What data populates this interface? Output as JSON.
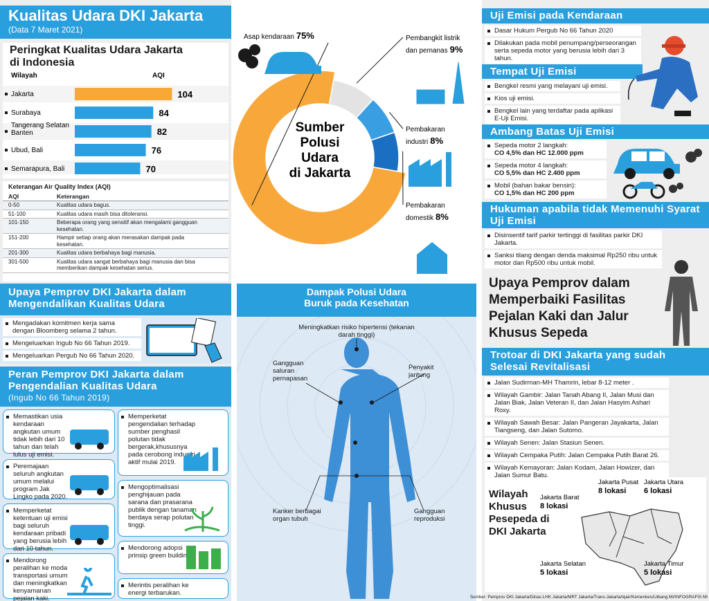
{
  "header": {
    "title": "Kualitas Udara DKI Jakarta",
    "subtitle": "(Data 7 Maret 2021)"
  },
  "aqi_ranking": {
    "title": "Peringkat Kualitas Udara Jakarta di Indonesia",
    "column_region": "Wilayah",
    "column_aqi": "AQI",
    "categories": [
      "Jakarta",
      "Surabaya",
      "Tangerang Selatan Banten",
      "Ubud, Bali",
      "Semarapura, Bali"
    ],
    "values": [
      104,
      84,
      82,
      76,
      70
    ],
    "colors": [
      "#f7a836",
      "#2c9fe0",
      "#2c9fe0",
      "#2c9fe0",
      "#2c9fe0"
    ]
  },
  "aqi_legend": {
    "title": "Keterangan Air Quality Index (AQI)",
    "header": [
      "AQI",
      "Keterangan"
    ],
    "rows": [
      [
        "0-50",
        "Kualitas udara bagus."
      ],
      [
        "51-100",
        "Kualitas udara masih bisa ditoleransi."
      ],
      [
        "101-150",
        "Beberapa orang yang sensitif akan mengalami gangguan kesehatan."
      ],
      [
        "151-200",
        "Hampir setiap orang akan merasakan dampak pada kesehatan."
      ],
      [
        "201-300",
        "Kualitas udara berbahaya bagi manusia."
      ],
      [
        "301-500",
        "Kualitas udara sangat berbahaya bagi manusia dan bisa memberikan dampak kesehatan serius."
      ]
    ]
  },
  "efforts": {
    "title": "Upaya Pemprov DKI Jakarta dalam Mengendalikan Kualitas Udara",
    "items": [
      "Mengadakan komitmen kerja sama dengan Bloomberg selama 2 tahun.",
      "Mengeluarkan Ingub No 66 Tahun 2019.",
      "Mengeluarkan Pergub No 66 Tahun 2020."
    ]
  },
  "roles": {
    "title": "Peran Pemprov DKI Jakarta dalam Pengendalian Kualitas Udara",
    "subtitle": "(Ingub No 66 Tahun 2019)",
    "left_items": [
      "Memastikan usia kendaraan angkutan umum tidak lebih dari 10 tahun dan telah lulus uji emisi.",
      "Peremajaan seluruh angkutan umum melalui program Jak Lingko pada 2020.",
      "Memperketat ketentuan uji emisi bagi seluruh kendaraan pribadi yang berusia lebih dari 10 tahun.",
      "Mendorong peralihan ke moda transportasi umum dan meningkatkan kenyamanan pejalan kaki."
    ],
    "right_items": [
      "Memperketat pengendalian terhadap sumber penghasil polutan tidak bergerak,khususnya pada cerobong industri aktif mulai 2019.",
      "Mengoptimalisasi penghijauan pada sarana dan prasarana publik dengan tanaman berdaya serap polutan tinggi.",
      "Mendorong adopsi prinsip green building.",
      "Merintis peralihan ke energi terbarukan."
    ]
  },
  "pollution_sources": {
    "title": "Sumber Polusi Udara di Jakarta",
    "categories": [
      "Asap kendaraan",
      "Pembangkit listrik dan pemanas",
      "Pembakaran industri",
      "Pembakaran domestik"
    ],
    "values": [
      75,
      9,
      8,
      8
    ],
    "value_labels": [
      "75%",
      "9%",
      "8%",
      "8%"
    ],
    "colors": [
      "#f8a83a",
      "#e3e3e3",
      "#3a9fe2",
      "#1b6fc2"
    ]
  },
  "health_impact": {
    "title": "Dampak Polusi Udara Buruk pada Kesehatan",
    "labels": [
      "Meningkatkan risiko hipertensi (tekanan darah tinggi)",
      "Gangguan saluran pernapasan",
      "Penyakit jantung",
      "Kanker berbagai organ tubuh",
      "Gangguan reproduksi"
    ]
  },
  "emission_test": {
    "title": "Uji Emisi pada Kendaraan",
    "items": [
      "Dasar Hukum Pergub No 66 Tahun 2020",
      "Dilakukan pada mobil penumpang/perseorangan serta sepeda motor yang berusia lebih dari 3 tahun."
    ]
  },
  "test_locations": {
    "title": "Tempat Uji Emisi",
    "items": [
      "Bengkel resmi yang melayani uji emisi.",
      "Kios uji emisi.",
      "Bengkel lain yang terdaftar pada aplikasi E-Uji Emisi."
    ]
  },
  "thresholds": {
    "title": "Ambang Batas Uji Emisi",
    "items": [
      {
        "label": "Sepeda motor 2 langkah:",
        "value": "CO 4,5% dan HC 12.000 ppm"
      },
      {
        "label": "Sepeda motor 4 langkah:",
        "value": "CO 5,5% dan HC 2.400 ppm"
      },
      {
        "label": "Mobil (bahan bakar bensin):",
        "value": "CO 1,5% dan HC 200 ppm"
      }
    ]
  },
  "penalties": {
    "title": "Hukuman apabila tidak Memenuhi Syarat Uji Emisi",
    "items": [
      "Disinsentif tarif parkir tertinggi di fasilitas parkir DKI Jakarta.",
      "Sanksi tilang dengan denda maksimal Rp250 ribu untuk motor dan Rp500 ribu untuk mobil."
    ]
  },
  "pedestrian": {
    "title": "Upaya Pemprov dalam Memperbaiki Fasilitas Pejalan Kaki dan Jalur Khusus Sepeda"
  },
  "sidewalks": {
    "title": "Trotoar di DKI Jakarta yang sudah Selesai Revitalisasi",
    "items": [
      "Jalan Sudirman-MH Thamrin, lebar 8-12 meter .",
      "Wilayah Gambir: Jalan Tanah Abang  II, Jalan Musi dan Jalan Biak, Jalan Veteran II, dan Jalan Hasyim Ashari Roxy.",
      "Wilayah Sawah Besar: Jalan Pangeran Jayakarta, Jalan Tiangseng, dan Jalan Sutomo.",
      "Wilayah Senen: Jalan Stasiun Senen.",
      "Wilayah Cempaka Putih: Jalan Cempaka Putih Barat 26.",
      "Wilayah Kemayoran: Jalan Kodam, Jalan Howizer, dan Jalan Sumur Batu."
    ]
  },
  "bike_lanes": {
    "title": "Wilayah Khusus Pesepeda di DKI Jakarta",
    "regions": [
      {
        "name": "Jakarta Pusat",
        "count": "8 lokasi"
      },
      {
        "name": "Jakarta Utara",
        "count": "6 lokasi"
      },
      {
        "name": "Jakarta Barat",
        "count": "8 lokasi"
      },
      {
        "name": "Jakarta Selatan",
        "count": "5 lokasi"
      },
      {
        "name": "Jakarta Timur",
        "count": "5 lokasi"
      }
    ]
  },
  "source": "Sumber: Pemprov DKI Jakarta/Dinas LHK Jakarta/MRT Jakarta/Trans-Jakarta/Iqair/Kemenkes/Litbang MI/INFOGRAFIS MI"
}
